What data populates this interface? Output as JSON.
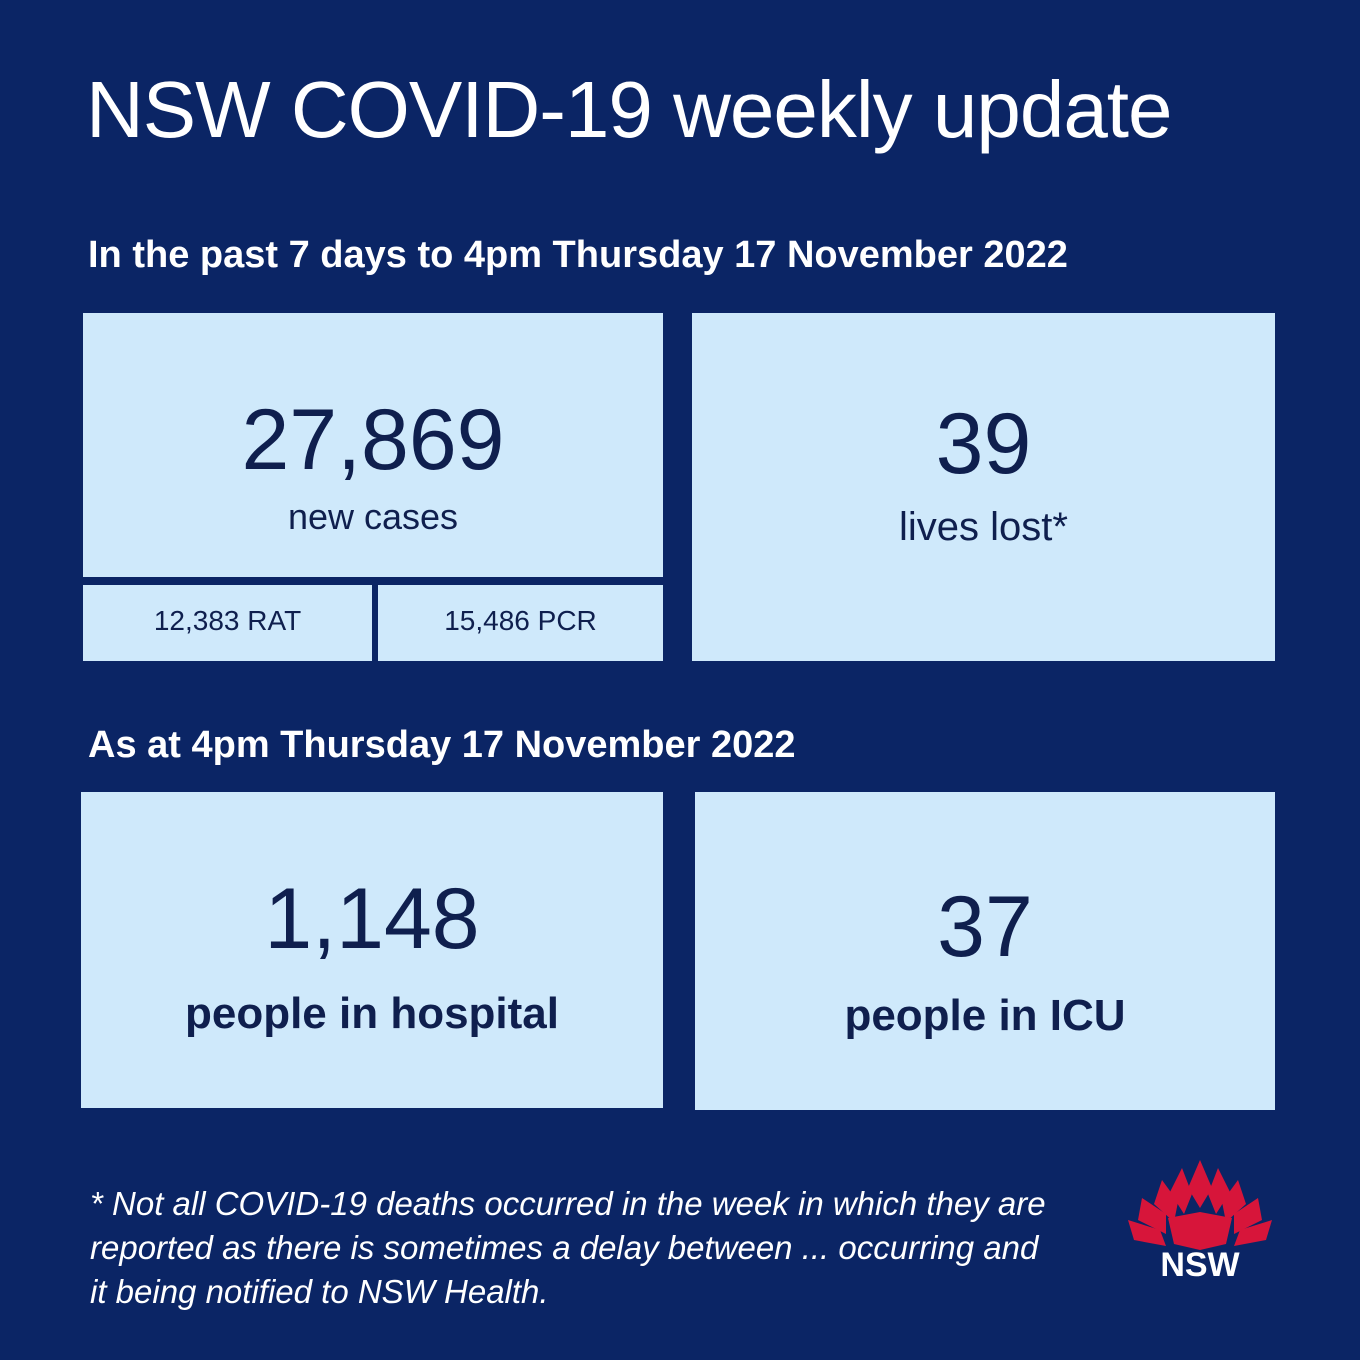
{
  "title": "NSW COVID-19 weekly update",
  "section1": {
    "heading": "In the past 7 days to 4pm Thursday 17 November 2022",
    "cases": {
      "value": "27,869",
      "label": "new cases",
      "rat": "12,383  RAT",
      "pcr": "15,486 PCR"
    },
    "deaths": {
      "value": "39",
      "label": "lives lost*"
    }
  },
  "section2": {
    "heading": "As at 4pm Thursday 17 November 2022",
    "hospital": {
      "value": "1,148",
      "label": "people in hospital"
    },
    "icu": {
      "value": "37",
      "label": "people in ICU"
    }
  },
  "footnote": "* Not all COVID-19 deaths occurred in the week in which they are reported as there is sometimes a delay between ... occurring and it being notified to NSW Health.",
  "logo": {
    "text": "NSW",
    "icon": "waratah-icon"
  },
  "colors": {
    "background": "#0b2565",
    "card": "#cfe9fb",
    "text_dark": "#0f1f4e",
    "logo_red": "#d7153a"
  }
}
